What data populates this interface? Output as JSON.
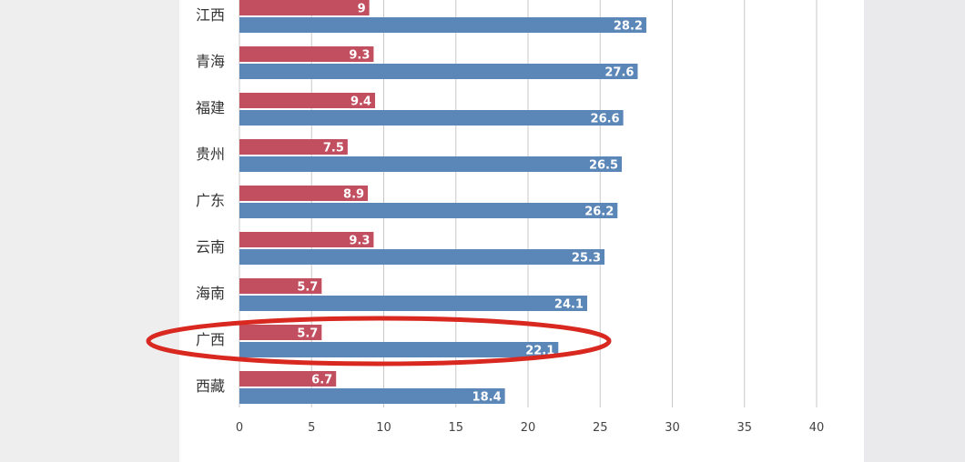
{
  "chart_data": {
    "type": "bar",
    "orientation": "horizontal",
    "categories": [
      "江西",
      "青海",
      "福建",
      "贵州",
      "广东",
      "云南",
      "海南",
      "广西",
      "西藏"
    ],
    "series": [
      {
        "color": "#c24f5f",
        "values": [
          9,
          9.3,
          9.4,
          7.5,
          8.9,
          9.3,
          5.7,
          5.7,
          6.7
        ]
      },
      {
        "color": "#5b87b8",
        "values": [
          28.2,
          27.6,
          26.6,
          26.5,
          26.2,
          25.3,
          24.1,
          22.1,
          18.4
        ]
      }
    ],
    "value_labels": {
      "series_0": [
        "9",
        "9.3",
        "9.4",
        "7.5",
        "8.9",
        "9.3",
        "5.7",
        "5.7",
        "6.7"
      ],
      "series_1": [
        "28.2",
        "27.6",
        "26.6",
        "26.5",
        "26.2",
        "25.3",
        "24.1",
        "22.1",
        "18.4"
      ]
    },
    "x_ticks": [
      "0",
      "5",
      "10",
      "15",
      "20",
      "25",
      "30",
      "35",
      "40"
    ],
    "xlim": [
      0,
      40
    ],
    "grid": true,
    "highlight": {
      "category": "广西",
      "shape": "ellipse",
      "color": "#d8281f"
    }
  }
}
